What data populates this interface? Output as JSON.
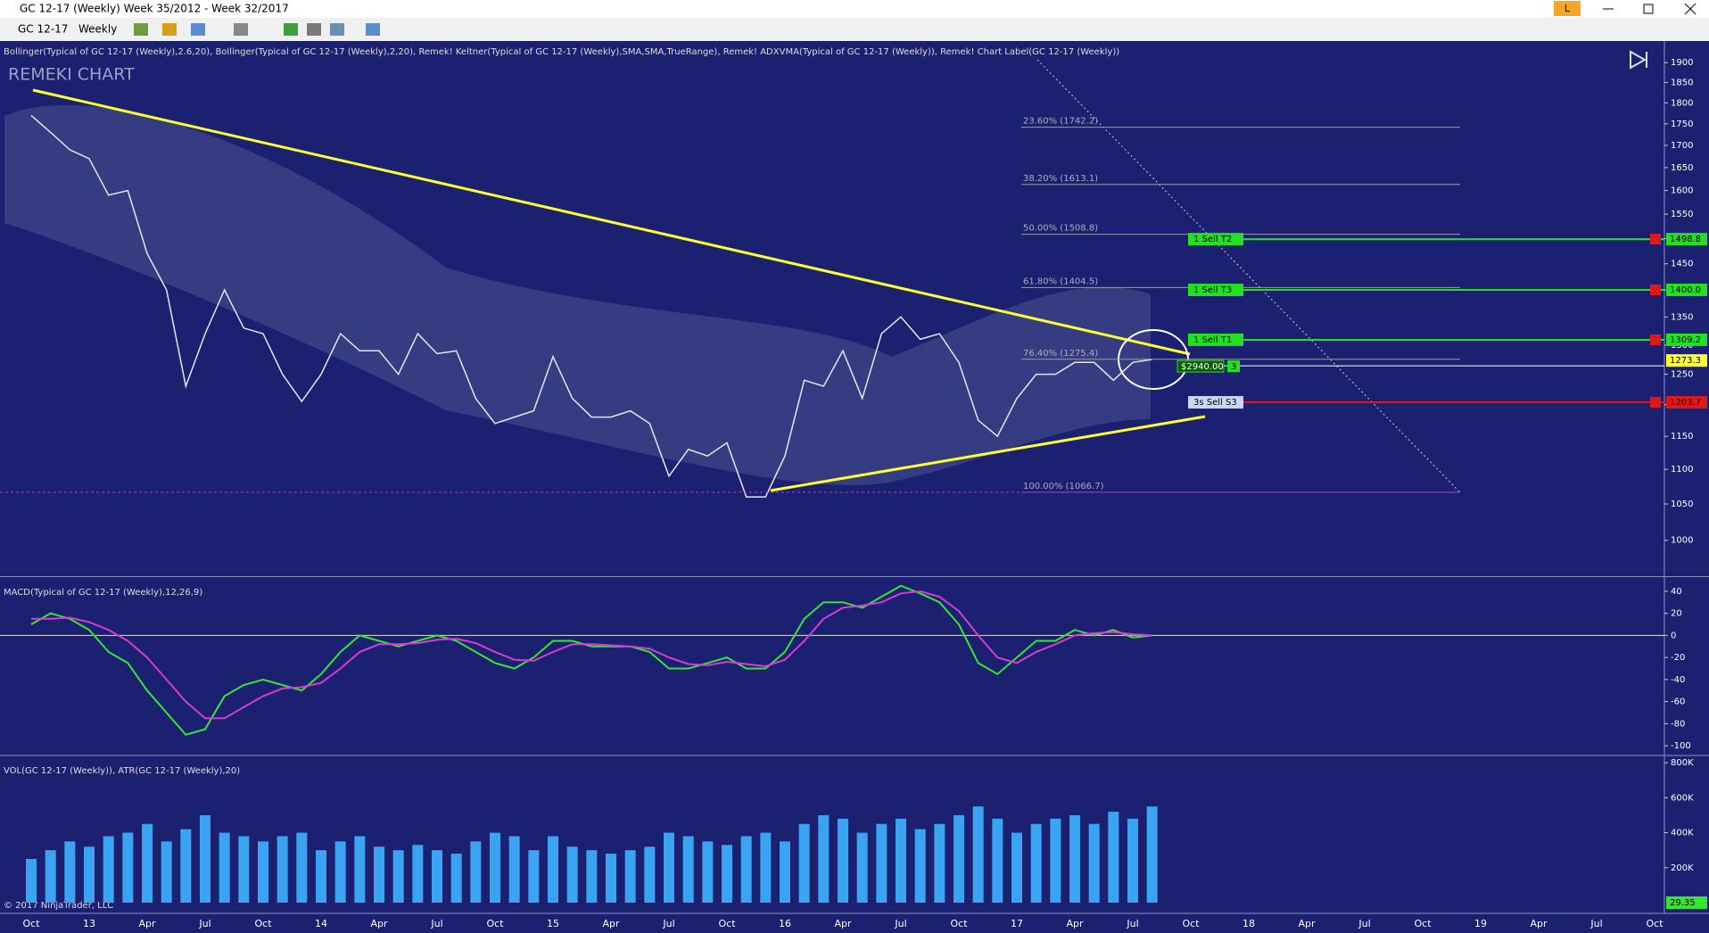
{
  "window": {
    "title": "GC 12-17 (Weekly)  Week 35/2012 - Week 32/2017",
    "symbol": "GC 12-17",
    "interval": "Weekly",
    "account": "L"
  },
  "time_axis_labels": [
    "Oct",
    "13",
    "Apr",
    "Jul",
    "Oct",
    "14",
    "Apr",
    "Jul",
    "Oct",
    "15",
    "Apr",
    "Jul",
    "Oct",
    "16",
    "Apr",
    "Jul",
    "Oct",
    "17",
    "Apr",
    "Jul",
    "Oct",
    "18",
    "Apr",
    "Jul",
    "Oct",
    "19",
    "Apr",
    "Jul",
    "Oct"
  ],
  "copyright": "© 2017 NinjaTrader, LLC",
  "chart_data": [
    {
      "type": "line",
      "title": "REMEKI CHART",
      "indicators": "Bollinger(Typical of GC 12-17 (Weekly),2.6,20), Bollinger(Typical of GC 12-17 (Weekly),2,20), Remek! Keltner(Typical of GC 12-17 (Weekly),SMA,SMA,TrueRange), Remek! ADXVMA(Typical of GC 12-17 (Weekly)), Remek! Chart Label(GC 12-17 (Weekly))",
      "log_scale": true,
      "ylim": [
        954,
        1956
      ],
      "yticks": [
        1000,
        1050,
        1100,
        1150,
        1200,
        1250,
        1300,
        1350,
        1400,
        1450,
        1500,
        1550,
        1600,
        1650,
        1700,
        1750,
        1800,
        1850,
        1900
      ],
      "color": "#e6e6e6",
      "values": [
        1770,
        1730,
        1690,
        1670,
        1590,
        1600,
        1470,
        1400,
        1230,
        1320,
        1400,
        1330,
        1320,
        1250,
        1205,
        1250,
        1320,
        1290,
        1290,
        1250,
        1320,
        1285,
        1290,
        1210,
        1170,
        1180,
        1190,
        1280,
        1210,
        1180,
        1180,
        1190,
        1170,
        1090,
        1130,
        1120,
        1140,
        1060,
        1060,
        1120,
        1240,
        1230,
        1290,
        1210,
        1320,
        1350,
        1310,
        1320,
        1270,
        1175,
        1150,
        1210,
        1250,
        1250,
        1270,
        1270,
        1240,
        1270,
        1275
      ],
      "fib_levels": [
        {
          "label": "23.60% (1742.2)",
          "value": 1742.2
        },
        {
          "label": "38.20% (1613.1)",
          "value": 1613.1
        },
        {
          "label": "50.00% (1508.8)",
          "value": 1508.8
        },
        {
          "label": "61.80% (1404.5)",
          "value": 1404.5
        },
        {
          "label": "76.40% (1275.4)",
          "value": 1275.4
        },
        {
          "label": "100.00% (1066.7)",
          "value": 1066.7
        }
      ],
      "orders": [
        {
          "label": "1  Sell T2",
          "value": 1498.8,
          "price_label": "1498.8",
          "color": "#22e022"
        },
        {
          "label": "1  Sell T3",
          "value": 1400.0,
          "price_label": "1400.0",
          "color": "#22e022"
        },
        {
          "label": "1  Sell T1",
          "value": 1309.2,
          "price_label": "1309.2",
          "color": "#22e022"
        },
        {
          "label": "3s  Sell S3",
          "value": 1203.7,
          "price_label": "1203.7",
          "color": "#e01818"
        }
      ],
      "last_price": {
        "value": 1273.3,
        "label": "1273.3",
        "color": "#ffff33"
      },
      "position": {
        "pnl": "$2940.00",
        "quantity": 3
      }
    },
    {
      "type": "line",
      "title": "MACD(Typical of GC 12-17 (Weekly),12,26,9)",
      "ylim": [
        -108,
        52
      ],
      "yticks": [
        40,
        20,
        0,
        -20,
        -40,
        -60,
        -80,
        -100
      ],
      "series": [
        {
          "color": "#33e633",
          "values": [
            10,
            20,
            15,
            5,
            -15,
            -25,
            -50,
            -70,
            -90,
            -85,
            -55,
            -45,
            -40,
            -45,
            -50,
            -35,
            -15,
            0,
            -5,
            -10,
            -5,
            0,
            -5,
            -15,
            -25,
            -30,
            -20,
            -5,
            -5,
            -10,
            -10,
            -10,
            -15,
            -30,
            -30,
            -25,
            -20,
            -30,
            -30,
            -15,
            15,
            30,
            30,
            25,
            35,
            45,
            38,
            30,
            10,
            -25,
            -35,
            -20,
            -5,
            -5,
            5,
            0,
            5,
            -2,
            0
          ]
        },
        {
          "color": "#d63bd6",
          "values": [
            15,
            15,
            16,
            12,
            5,
            -5,
            -20,
            -40,
            -60,
            -75,
            -75,
            -65,
            -55,
            -48,
            -47,
            -43,
            -30,
            -15,
            -8,
            -8,
            -7,
            -4,
            -3,
            -7,
            -15,
            -22,
            -23,
            -15,
            -8,
            -8,
            -9,
            -10,
            -12,
            -20,
            -26,
            -27,
            -24,
            -26,
            -28,
            -22,
            -5,
            15,
            25,
            27,
            30,
            38,
            40,
            35,
            22,
            0,
            -20,
            -25,
            -15,
            -8,
            0,
            2,
            3,
            1,
            0
          ]
        }
      ]
    },
    {
      "type": "bar",
      "title": "VOL(GC 12-17 (Weekly)), ATR(GC 12-17 (Weekly),20)",
      "ylim": [
        -61000,
        836000
      ],
      "yticks": [
        {
          "value": 800000,
          "label": "800K"
        },
        {
          "value": 600000,
          "label": "600K"
        },
        {
          "value": 400000,
          "label": "400K"
        },
        {
          "value": 200000,
          "label": "200K"
        }
      ],
      "color": "#3aa4f2",
      "values": [
        250000,
        300000,
        350000,
        320000,
        380000,
        400000,
        450000,
        350000,
        420000,
        500000,
        400000,
        380000,
        350000,
        380000,
        400000,
        300000,
        350000,
        380000,
        320000,
        300000,
        330000,
        300000,
        280000,
        350000,
        400000,
        380000,
        300000,
        380000,
        320000,
        300000,
        280000,
        300000,
        320000,
        400000,
        380000,
        350000,
        330000,
        380000,
        400000,
        350000,
        450000,
        500000,
        480000,
        400000,
        450000,
        480000,
        420000,
        450000,
        500000,
        550000,
        480000,
        400000,
        450000,
        480000,
        500000,
        450000,
        520000,
        480000,
        550000
      ],
      "atr_last": 29.35
    }
  ]
}
